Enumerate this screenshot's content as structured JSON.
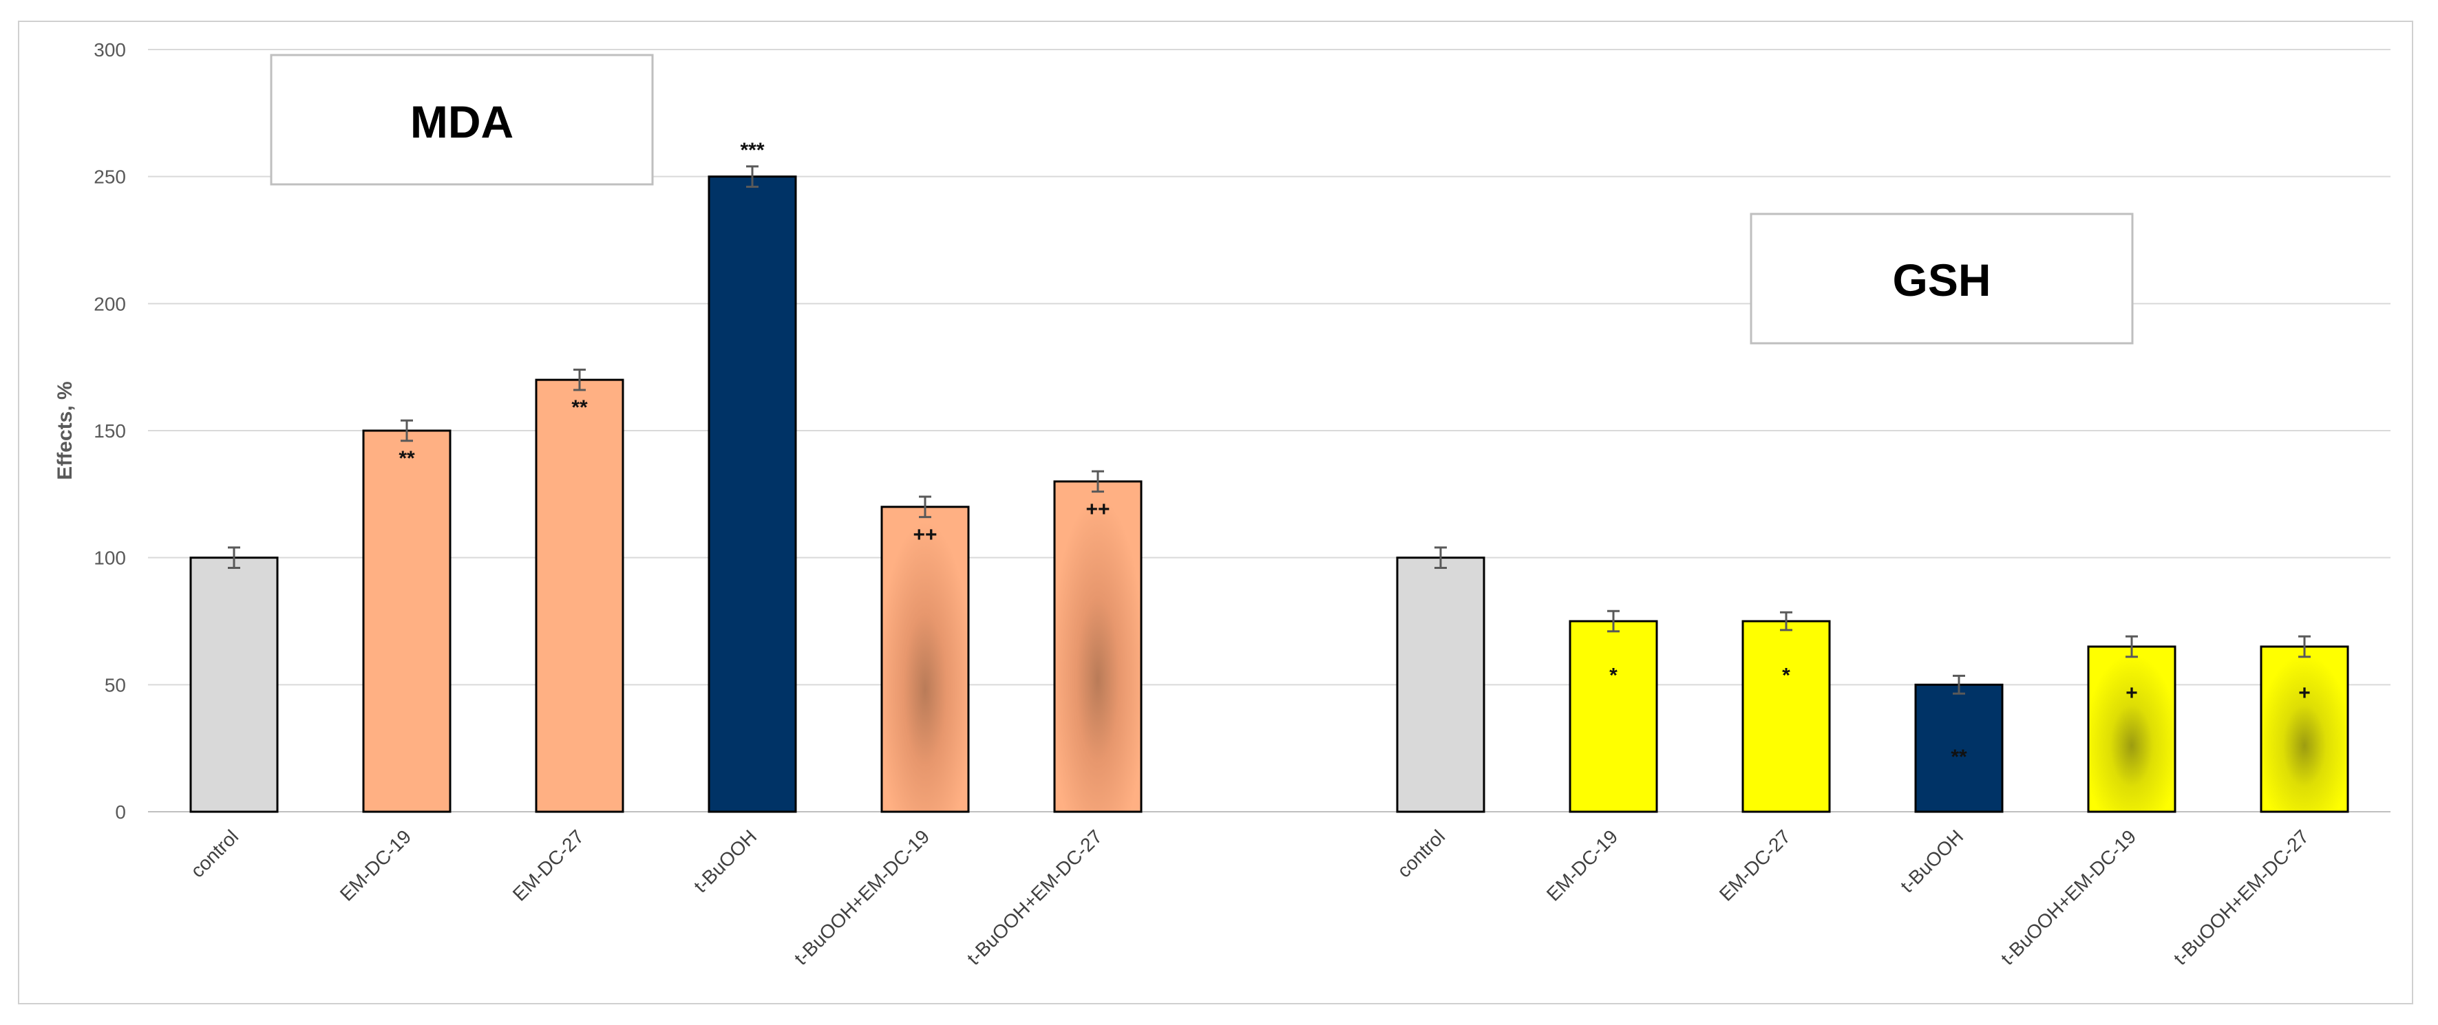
{
  "chart_data": {
    "type": "bar",
    "ylabel": "Effects, %",
    "ylim": [
      0,
      300
    ],
    "yticks": [
      0,
      50,
      100,
      150,
      200,
      250,
      300
    ],
    "grid": true,
    "colors": {
      "control": "#d9d9d9",
      "mda_treatment": "#ffb083",
      "tbuooh": "#003366",
      "gsh_treatment": "#ffff00",
      "gridline": "#d9d9d9",
      "errorbar": "#595959"
    },
    "groups": [
      {
        "name": "MDA",
        "categories": [
          "control",
          "EM-DC-19",
          "EM-DC-27",
          "t-BuOOH",
          "t-BuOOH+EM-DC-19",
          "t-BuOOH+EM-DC-27"
        ],
        "values": [
          100,
          150,
          170,
          250,
          120,
          130
        ],
        "errors": [
          4,
          4,
          4,
          4,
          4,
          4
        ],
        "significance": [
          "",
          "**",
          "**",
          "***",
          "++",
          "++"
        ],
        "fill_keys": [
          "control",
          "mda_treatment",
          "mda_treatment",
          "tbuooh",
          "mda_treatment",
          "mda_treatment"
        ],
        "shaded": [
          false,
          false,
          false,
          false,
          true,
          true
        ]
      },
      {
        "name": "GSH",
        "categories": [
          "control",
          "EM-DC-19",
          "EM-DC-27",
          "t-BuOOH",
          "t-BuOOH+EM-DC-19",
          "t-BuOOH+EM-DC-27"
        ],
        "values": [
          100,
          75,
          75,
          50,
          65,
          65
        ],
        "errors": [
          4,
          4,
          3.5,
          3.5,
          4,
          4
        ],
        "significance": [
          "",
          "*",
          "*",
          "**",
          "+",
          "+"
        ],
        "fill_keys": [
          "control",
          "gsh_treatment",
          "gsh_treatment",
          "tbuooh",
          "gsh_treatment",
          "gsh_treatment"
        ],
        "shaded": [
          false,
          false,
          false,
          false,
          true,
          true
        ]
      }
    ]
  }
}
